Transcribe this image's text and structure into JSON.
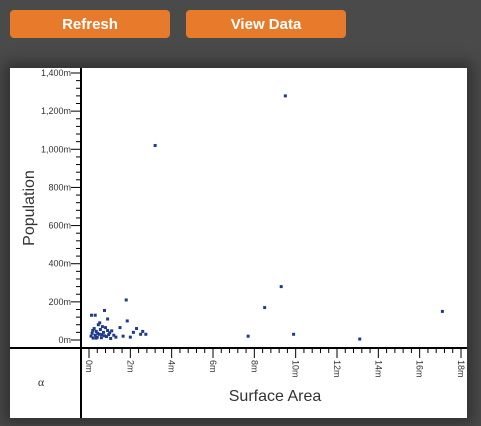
{
  "toolbar": {
    "refresh_label": "Refresh",
    "view_data_label": "View Data"
  },
  "colors": {
    "button": "#e87b2b",
    "point": "#1f3a8a",
    "background": "#4a4a4a"
  },
  "corner_label": "α",
  "chart_data": {
    "type": "scatter",
    "xlabel": "Surface Area",
    "ylabel": "Population",
    "xlim": [
      0,
      18000000
    ],
    "ylim": [
      0,
      1400000
    ],
    "x_ticks": [
      "0m",
      "2m",
      "4m",
      "6m",
      "8m",
      "10m",
      "12m",
      "14m",
      "16m",
      "18m"
    ],
    "y_ticks": [
      "0m",
      "200m",
      "400m",
      "600m",
      "800m",
      "1,000m",
      "1,200m",
      "1,400m"
    ],
    "grid": false,
    "points": [
      [
        100000,
        20000
      ],
      [
        150000,
        35000
      ],
      [
        200000,
        10000
      ],
      [
        250000,
        60000
      ],
      [
        300000,
        25000
      ],
      [
        350000,
        45000
      ],
      [
        400000,
        15000
      ],
      [
        450000,
        80000
      ],
      [
        500000,
        30000
      ],
      [
        550000,
        55000
      ],
      [
        600000,
        12000
      ],
      [
        650000,
        70000
      ],
      [
        700000,
        40000
      ],
      [
        750000,
        22000
      ],
      [
        800000,
        65000
      ],
      [
        850000,
        18000
      ],
      [
        900000,
        50000
      ],
      [
        950000,
        28000
      ],
      [
        1000000,
        38000
      ],
      [
        1050000,
        8000
      ],
      [
        1100000,
        48000
      ],
      [
        1200000,
        25000
      ],
      [
        1300000,
        15000
      ],
      [
        120000,
        130000
      ],
      [
        300000,
        130000
      ],
      [
        750000,
        155000
      ],
      [
        900000,
        110000
      ],
      [
        1500000,
        65000
      ],
      [
        1650000,
        20000
      ],
      [
        1850000,
        100000
      ],
      [
        2000000,
        15000
      ],
      [
        2150000,
        40000
      ],
      [
        2300000,
        60000
      ],
      [
        2500000,
        30000
      ],
      [
        2600000,
        45000
      ],
      [
        2750000,
        30000
      ],
      [
        3200000,
        1020000
      ],
      [
        1800000,
        210000
      ],
      [
        7700000,
        20000
      ],
      [
        8500000,
        170000
      ],
      [
        9300000,
        280000
      ],
      [
        9500000,
        1280000
      ],
      [
        9900000,
        30000
      ],
      [
        13100000,
        5000
      ],
      [
        17100000,
        150000
      ],
      [
        180000,
        50000
      ],
      [
        420000,
        35000
      ],
      [
        620000,
        28000
      ],
      [
        520000,
        90000
      ],
      [
        350000,
        10000
      ]
    ]
  }
}
